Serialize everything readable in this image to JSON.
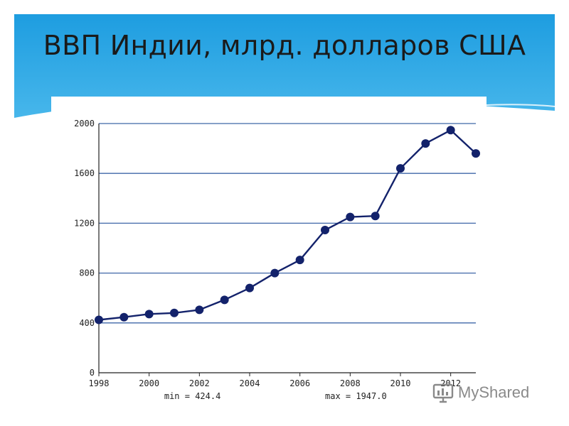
{
  "slide": {
    "title": "ВВП Индии, млрд. долларов США",
    "header_color": "#29a8e6",
    "watermark": "MyShared"
  },
  "chart_data": {
    "type": "line",
    "title": "",
    "xlabel": "",
    "ylabel": "",
    "x": [
      1998,
      1999,
      2000,
      2001,
      2002,
      2003,
      2004,
      2005,
      2006,
      2007,
      2008,
      2009,
      2010,
      2011,
      2012,
      2013
    ],
    "series": [
      {
        "values": [
          424.4,
          446,
          471,
          480,
          505,
          585,
          680,
          800,
          905,
          1145,
          1250,
          1258,
          1640,
          1840,
          1947.0,
          1760
        ],
        "color": "#13226b"
      }
    ],
    "xlim": [
      1998,
      2013
    ],
    "ylim": [
      0,
      2000
    ],
    "xticks": [
      1998,
      2000,
      2002,
      2004,
      2006,
      2008,
      2010,
      2012
    ],
    "yticks": [
      0,
      400,
      800,
      1200,
      1600,
      2000
    ],
    "grid": true,
    "grid_color": "#3f67a8",
    "min_label": "min = 424.4",
    "max_label": "max = 1947.0"
  }
}
